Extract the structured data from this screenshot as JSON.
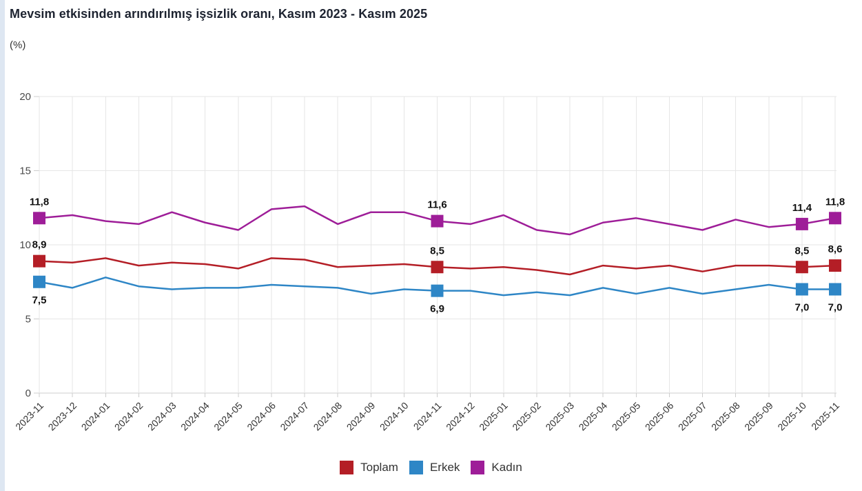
{
  "chart_data": {
    "type": "line",
    "title": "Mevsim etkisinden arındırılmış işsizlik oranı, Kasım 2023 - Kasım 2025",
    "subtitle": "(%)",
    "categories": [
      "2023-11",
      "2023-12",
      "2024-01",
      "2024-02",
      "2024-03",
      "2024-04",
      "2024-05",
      "2024-06",
      "2024-07",
      "2024-08",
      "2024-09",
      "2024-10",
      "2024-11",
      "2024-12",
      "2025-01",
      "2025-02",
      "2025-03",
      "2025-04",
      "2025-05",
      "2025-06",
      "2025-07",
      "2025-08",
      "2025-09",
      "2025-10",
      "2025-11"
    ],
    "series": [
      {
        "name": "Toplam",
        "color": "#b41e26",
        "values": [
          8.9,
          8.8,
          9.1,
          8.6,
          8.8,
          8.7,
          8.4,
          9.1,
          9.0,
          8.5,
          8.6,
          8.7,
          8.5,
          8.4,
          8.5,
          8.3,
          8.0,
          8.6,
          8.4,
          8.6,
          8.2,
          8.6,
          8.6,
          8.5,
          8.6
        ],
        "point_labels": {
          "0": "8,9",
          "12": "8,5",
          "23": "8,5",
          "24": "8,6"
        },
        "label_side": "above"
      },
      {
        "name": "Erkek",
        "color": "#2e86c6",
        "values": [
          7.5,
          7.1,
          7.8,
          7.2,
          7.0,
          7.1,
          7.1,
          7.3,
          7.2,
          7.1,
          6.7,
          7.0,
          6.9,
          6.9,
          6.6,
          6.8,
          6.6,
          7.1,
          6.7,
          7.1,
          6.7,
          7.0,
          7.3,
          7.0,
          7.0
        ],
        "point_labels": {
          "0": "7,5",
          "12": "6,9",
          "23": "7,0",
          "24": "7,0"
        },
        "label_side": "below"
      },
      {
        "name": "Kadın",
        "color": "#9e1d98",
        "values": [
          11.8,
          12.0,
          11.6,
          11.4,
          12.2,
          11.5,
          11.0,
          12.4,
          12.6,
          11.4,
          12.2,
          12.2,
          11.6,
          11.4,
          12.0,
          11.0,
          10.7,
          11.5,
          11.8,
          11.4,
          11.0,
          11.7,
          11.2,
          11.4,
          11.8
        ],
        "point_labels": {
          "0": "11,8",
          "12": "11,6",
          "23": "11,4",
          "24": "11,8"
        },
        "label_side": "above"
      }
    ],
    "marker_indices": [
      0,
      12,
      23,
      24
    ],
    "yticks": [
      0,
      5,
      10,
      15,
      20
    ],
    "ylim": [
      0,
      20
    ],
    "grid": true,
    "legend_position": "bottom"
  },
  "legend": {
    "items": [
      {
        "label": "Toplam",
        "color": "#b41e26"
      },
      {
        "label": "Erkek",
        "color": "#2e86c6"
      },
      {
        "label": "Kadın",
        "color": "#9e1d98"
      }
    ]
  },
  "style": {
    "grid_color": "#e6e6e6",
    "axis_color": "#cccccc",
    "tick_label_color": "#4a4a4a",
    "x_label_color": "#333333",
    "data_label_color": "#111111"
  }
}
